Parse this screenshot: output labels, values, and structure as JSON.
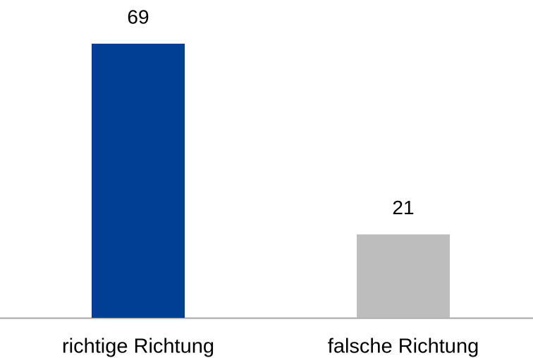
{
  "chart_data": {
    "type": "bar",
    "categories": [
      "richtige Richtung",
      "falsche Richtung"
    ],
    "values": [
      69,
      21
    ],
    "colors": [
      "#003f93",
      "#bdbdbd"
    ]
  }
}
